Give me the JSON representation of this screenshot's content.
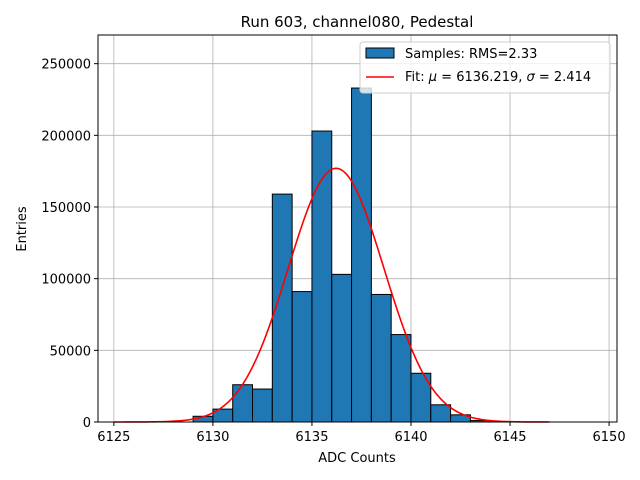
{
  "chart_data": {
    "type": "bar",
    "title": "Run 603, channel080, Pedestal",
    "xlabel": "ADC Counts",
    "ylabel": "Entries",
    "xlim": [
      6124.2,
      6150.4
    ],
    "ylim": [
      0,
      270000
    ],
    "grid": true,
    "xticks": [
      6125,
      6130,
      6135,
      6140,
      6145,
      6150
    ],
    "xtick_labels": [
      "6125",
      "6130",
      "6135",
      "6140",
      "6145",
      "6150"
    ],
    "yticks": [
      0,
      50000,
      100000,
      150000,
      200000,
      250000
    ],
    "ytick_labels": [
      "0",
      "50000",
      "100000",
      "150000",
      "200000",
      "250000"
    ],
    "histogram": {
      "name": "Samples: RMS=2.33",
      "bin_width": 1,
      "bin_starts": [
        6129,
        6130,
        6131,
        6132,
        6133,
        6134,
        6135,
        6136,
        6137,
        6138,
        6139,
        6140,
        6141,
        6142,
        6143
      ],
      "values": [
        4000,
        9000,
        26000,
        23000,
        159000,
        91000,
        203000,
        103000,
        233000,
        89000,
        61000,
        34000,
        12000,
        5000,
        1000
      ]
    },
    "fit": {
      "name_prefix": "Fit: ",
      "mu_symbol": "μ",
      "mu_text": " = 6136.219, ",
      "sigma_symbol": "σ",
      "sigma_text": " = 2.414",
      "mu": 6136.219,
      "sigma": 2.414,
      "amplitude": 177000,
      "x_range": [
        6125,
        6147
      ]
    },
    "legend_position": "top-right",
    "colors": {
      "bars": "#1f77b4",
      "fit": "#ff0000",
      "grid": "#b0b0b0"
    }
  }
}
